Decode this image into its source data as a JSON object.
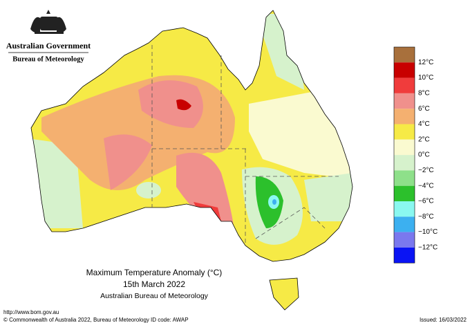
{
  "header": {
    "government": "Australian Government",
    "agency": "Bureau of Meteorology"
  },
  "map": {
    "title": "Maximum Temperature Anomaly (°C)",
    "date": "15th March 2022",
    "source": "Australian Bureau of Meteorology"
  },
  "legend": {
    "labels": [
      "12°C",
      "10°C",
      "8°C",
      "6°C",
      "4°C",
      "2°C",
      "0°C",
      "−2°C",
      "−4°C",
      "−6°C",
      "−8°C",
      "−10°C",
      "−12°C"
    ],
    "colors": [
      "#a8703c",
      "#c80000",
      "#f03c3c",
      "#f0908c",
      "#f4b070",
      "#f6ea46",
      "#fafad0",
      "#d6f2cc",
      "#8ee08a",
      "#2cc02c",
      "#8af8f0",
      "#3cb0f0",
      "#7a78ee",
      "#0a14f4"
    ]
  },
  "footer": {
    "url": "http://www.bom.gov.au",
    "copyright": "© Commonwealth of Australia 2022, Bureau of Meteorology",
    "id_code": "ID code: AWAP",
    "issued": "Issued: 16/03/2022"
  }
}
